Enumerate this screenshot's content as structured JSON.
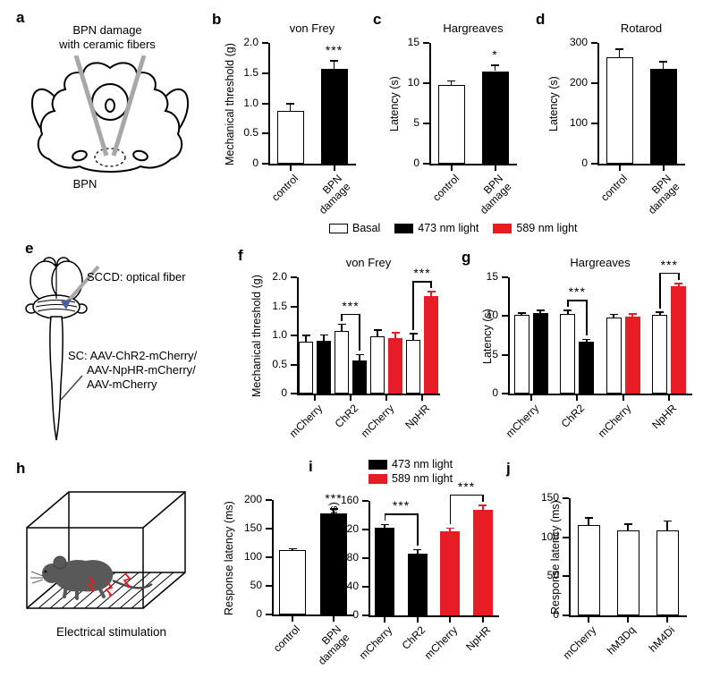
{
  "panels": {
    "a": {
      "letter": "a",
      "caption": "BPN damage\nwith ceramic fibers",
      "target_label": "BPN"
    },
    "b": {
      "letter": "b"
    },
    "c": {
      "letter": "c"
    },
    "d": {
      "letter": "d"
    },
    "e": {
      "letter": "e",
      "fiber_label": "SCCD: optical fiber",
      "injection_label": "SC: AAV-ChR2-mCherry/\n      AAV-NpHR-mCherry/\n      AAV-mCherry"
    },
    "f": {
      "letter": "f"
    },
    "g": {
      "letter": "g"
    },
    "h": {
      "letter": "h",
      "caption": "Electrical stimulation"
    },
    "i": {
      "letter": "i"
    },
    "j": {
      "letter": "j"
    }
  },
  "colors": {
    "basal": "#ffffff",
    "light473": "#000000",
    "light589": "#e81c24"
  },
  "legend_shared": {
    "items": [
      {
        "label": "Basal",
        "color": "#ffffff"
      },
      {
        "label": "473 nm light",
        "color": "#000000"
      },
      {
        "label": "589 nm light",
        "color": "#e81c24"
      }
    ]
  },
  "legend_i": {
    "items": [
      {
        "label": "473 nm light",
        "color": "#000000"
      },
      {
        "label": "589 nm light",
        "color": "#e81c24"
      }
    ]
  },
  "chart_data": [
    {
      "id": "b",
      "type": "bar",
      "title": "von Frey",
      "ylabel": "Mechanical threshold (g)",
      "ylim": [
        0,
        2.0
      ],
      "yticks": [
        0,
        0.5,
        1.0,
        1.5,
        2.0
      ],
      "ytick_labels": [
        "0",
        "0.5",
        "1.0",
        "1.5",
        "2.0"
      ],
      "categories": [
        "control",
        "BPN\ndamage"
      ],
      "values": [
        0.87,
        1.57
      ],
      "errors": [
        0.12,
        0.13
      ],
      "bar_colors": [
        "basal",
        "light473"
      ],
      "stars": [
        {
          "bar": 1,
          "label": "***"
        }
      ]
    },
    {
      "id": "c",
      "type": "bar",
      "title": "Hargreaves",
      "ylabel": "Latency (s)",
      "ylim": [
        0,
        15
      ],
      "yticks": [
        0,
        5,
        10,
        15
      ],
      "ytick_labels": [
        "0",
        "5",
        "10",
        "15"
      ],
      "categories": [
        "control",
        "BPN\ndamage"
      ],
      "values": [
        9.8,
        11.5
      ],
      "errors": [
        0.5,
        0.7
      ],
      "bar_colors": [
        "basal",
        "light473"
      ],
      "stars": [
        {
          "bar": 1,
          "label": "*"
        }
      ]
    },
    {
      "id": "d",
      "type": "bar",
      "title": "Rotarod",
      "ylabel": "Latency (s)",
      "ylim": [
        0,
        300
      ],
      "yticks": [
        0,
        100,
        200,
        300
      ],
      "ytick_labels": [
        "0",
        "100",
        "200",
        "300"
      ],
      "categories": [
        "control",
        "BPN\ndamage"
      ],
      "values": [
        265,
        235
      ],
      "errors": [
        20,
        18
      ],
      "bar_colors": [
        "basal",
        "light473"
      ],
      "stars": []
    },
    {
      "id": "f",
      "type": "bar",
      "title": "von Frey",
      "ylabel": "Mechanical threshold (g)",
      "ylim": [
        0,
        2.0
      ],
      "yticks": [
        0,
        0.5,
        1.0,
        1.5,
        2.0
      ],
      "ytick_labels": [
        "0",
        "0.5",
        "1.0",
        "1.5",
        "2.0"
      ],
      "categories": [
        "mCherry",
        "ChR2",
        "mCherry",
        "NpHR"
      ],
      "values": [
        0.9,
        0.91,
        1.07,
        0.57,
        0.99,
        0.95,
        0.93,
        1.67
      ],
      "errors": [
        0.1,
        0.1,
        0.12,
        0.1,
        0.1,
        0.1,
        0.1,
        0.08
      ],
      "bar_colors": [
        "basal",
        "light473",
        "basal",
        "light473",
        "basal",
        "light589",
        "basal",
        "light589"
      ],
      "brackets": [
        {
          "a": 2,
          "b": 3,
          "label": "***"
        },
        {
          "a": 6,
          "b": 7,
          "label": "***"
        }
      ]
    },
    {
      "id": "g",
      "type": "bar",
      "title": "Hargreaves",
      "ylabel": "Latency (s)",
      "ylim": [
        0,
        15
      ],
      "yticks": [
        0,
        5,
        10,
        15
      ],
      "ytick_labels": [
        "0",
        "5",
        "10",
        "15"
      ],
      "categories": [
        "mCherry",
        "ChR2",
        "mCherry",
        "NpHR"
      ],
      "values": [
        10.1,
        10.4,
        10.3,
        6.7,
        9.8,
        9.9,
        10.1,
        13.8
      ],
      "errors": [
        0.3,
        0.3,
        0.4,
        0.3,
        0.4,
        0.4,
        0.4,
        0.4
      ],
      "bar_colors": [
        "basal",
        "light473",
        "basal",
        "light473",
        "basal",
        "light589",
        "basal",
        "light589"
      ],
      "brackets": [
        {
          "a": 2,
          "b": 3,
          "label": "***"
        },
        {
          "a": 6,
          "b": 7,
          "label": "***"
        }
      ]
    },
    {
      "id": "h",
      "type": "bar",
      "title": "",
      "ylabel": "Response latency (ms)",
      "ylim": [
        0,
        200
      ],
      "yticks": [
        0,
        50,
        100,
        150,
        200
      ],
      "ytick_labels": [
        "0",
        "50",
        "100",
        "150",
        "200"
      ],
      "categories": [
        "control",
        "BPN\ndamage"
      ],
      "values": [
        112,
        176
      ],
      "errors": [
        3,
        8
      ],
      "bar_colors": [
        "basal",
        "light473"
      ],
      "stars": [
        {
          "bar": 1,
          "label": "***"
        }
      ]
    },
    {
      "id": "i",
      "type": "bar",
      "title": "",
      "ylabel": "Response latency (ms)",
      "ylim": [
        0,
        160
      ],
      "yticks": [
        0,
        40,
        80,
        120,
        160
      ],
      "ytick_labels": [
        "0",
        "40",
        "80",
        "120",
        "160"
      ],
      "categories": [
        "mCherry",
        "ChR2",
        "mCherry",
        "NpHR"
      ],
      "values": [
        122,
        86,
        118,
        148
      ],
      "errors": [
        5,
        6,
        4,
        6
      ],
      "bar_colors": [
        "light473",
        "light473",
        "light589",
        "light589"
      ],
      "brackets": [
        {
          "a": 0,
          "b": 1,
          "label": "***"
        },
        {
          "a": 2,
          "b": 3,
          "label": "***"
        }
      ]
    },
    {
      "id": "j",
      "type": "bar",
      "title": "",
      "ylabel": "Response latency (ms)",
      "ylim": [
        0,
        150
      ],
      "yticks": [
        0,
        50,
        100,
        150
      ],
      "ytick_labels": [
        "0",
        "50",
        "100",
        "150"
      ],
      "categories": [
        "mCherry",
        "hM3Dq",
        "hM4Di"
      ],
      "values": [
        116,
        109,
        109
      ],
      "errors": [
        9,
        8,
        12
      ],
      "bar_colors": [
        "basal",
        "basal",
        "basal"
      ],
      "stars": []
    }
  ]
}
